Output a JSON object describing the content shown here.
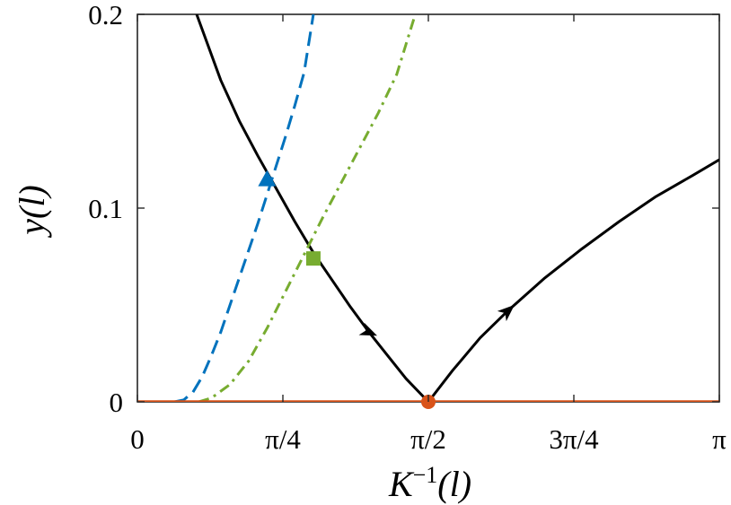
{
  "chart_data": {
    "type": "line",
    "xlabel": {
      "base": "K",
      "sup": "−1",
      "arg": "(l)"
    },
    "ylabel": {
      "name": "y",
      "arg": "(l)"
    },
    "xlim": [
      0,
      3.14159
    ],
    "ylim": [
      0,
      0.2
    ],
    "x_ticks": [
      {
        "value": 0,
        "label": "0"
      },
      {
        "value": 0.7854,
        "label": "π/4"
      },
      {
        "value": 1.5708,
        "label": "π/2"
      },
      {
        "value": 2.3562,
        "label": "3π/4"
      },
      {
        "value": 3.14159,
        "label": "π"
      }
    ],
    "y_ticks": [
      {
        "value": 0,
        "label": "0"
      },
      {
        "value": 0.1,
        "label": "0.1"
      },
      {
        "value": 0.2,
        "label": "0.2"
      }
    ],
    "grid": false,
    "colors": {
      "black": "#000000",
      "blue": "#0072BD",
      "green": "#77AC30",
      "orange": "#D95319"
    },
    "series": [
      {
        "style": "solid",
        "color": "black",
        "x": [
          0.32,
          0.45,
          0.55,
          0.65,
          0.75,
          0.85,
          0.95,
          1.05,
          1.15,
          1.25,
          1.35,
          1.45,
          1.5708
        ],
        "y": [
          0.2,
          0.166,
          0.145,
          0.127,
          0.11,
          0.093,
          0.077,
          0.063,
          0.049,
          0.036,
          0.024,
          0.012,
          0.0
        ]
      },
      {
        "style": "solid",
        "color": "black",
        "x": [
          1.5708,
          1.7,
          1.85,
          2.0,
          2.2,
          2.4,
          2.6,
          2.8,
          3.0,
          3.14159
        ],
        "y": [
          0.0,
          0.016,
          0.033,
          0.047,
          0.064,
          0.079,
          0.093,
          0.106,
          0.117,
          0.125
        ]
      },
      {
        "style": "dashed",
        "color": "blue",
        "x": [
          0.2,
          0.25,
          0.3,
          0.35,
          0.4,
          0.45,
          0.5,
          0.55,
          0.6,
          0.65,
          0.7,
          0.75,
          0.8,
          0.85,
          0.9,
          0.95
        ],
        "y": [
          0.0,
          0.001,
          0.005,
          0.013,
          0.024,
          0.036,
          0.05,
          0.064,
          0.078,
          0.092,
          0.107,
          0.122,
          0.137,
          0.153,
          0.17,
          0.2
        ]
      },
      {
        "style": "dashdot",
        "color": "green",
        "x": [
          0.33,
          0.4,
          0.5,
          0.6,
          0.7,
          0.8,
          0.9,
          1.0,
          1.1,
          1.2,
          1.3,
          1.4,
          1.5
        ],
        "y": [
          0.0,
          0.002,
          0.009,
          0.021,
          0.038,
          0.057,
          0.076,
          0.095,
          0.113,
          0.131,
          0.149,
          0.169,
          0.2
        ]
      },
      {
        "style": "solid",
        "color": "orange",
        "width": 3.5,
        "x": [
          0,
          3.14159
        ],
        "y": [
          0,
          0
        ]
      }
    ],
    "markers": [
      {
        "shape": "triangle",
        "color": "blue",
        "x": 0.7,
        "y": 0.115
      },
      {
        "shape": "square",
        "color": "green",
        "x": 0.95,
        "y": 0.074
      },
      {
        "shape": "circle",
        "color": "orange",
        "x": 1.5708,
        "y": 0.0
      }
    ],
    "arrows": [
      {
        "color": "black",
        "x": 1.25,
        "y": 0.036,
        "dx": 1,
        "dy": -0.042
      },
      {
        "color": "black",
        "x": 2.0,
        "y": 0.047,
        "dx": 1,
        "dy": 0.085
      }
    ]
  }
}
